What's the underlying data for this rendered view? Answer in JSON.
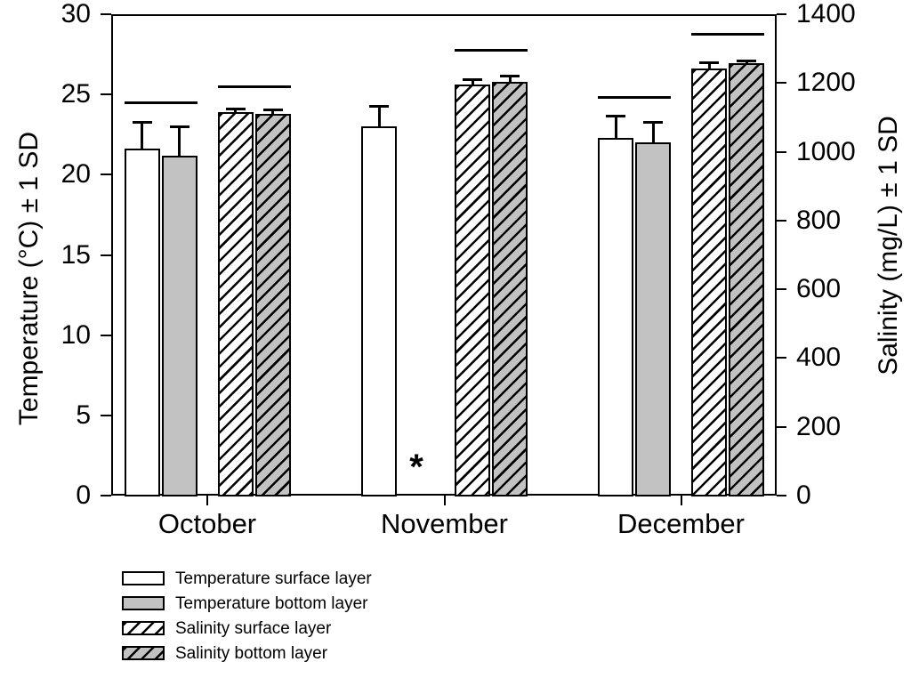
{
  "colors": {
    "bar_white": "#ffffff",
    "bar_gray": "#c2c2c2",
    "line": "#000000",
    "background": "#ffffff"
  },
  "chart_data": {
    "type": "bar",
    "title": "",
    "categories": [
      "October",
      "November",
      "December"
    ],
    "axes": {
      "left": {
        "label": "Temperature (°C) ± 1 SD",
        "min": 0,
        "max": 30,
        "ticks": [
          0,
          5,
          10,
          15,
          20,
          25,
          30
        ]
      },
      "right": {
        "label": "Salinity (mg/L) ± 1 SD",
        "min": 0,
        "max": 1400,
        "ticks": [
          0,
          200,
          400,
          600,
          800,
          1000,
          1200,
          1400
        ]
      }
    },
    "series": [
      {
        "name": "Temperature surface layer",
        "axis": "left",
        "style": "white",
        "values": [
          21.6,
          23.0,
          22.3
        ],
        "sd": [
          1.7,
          1.3,
          1.4
        ]
      },
      {
        "name": "Temperature bottom layer",
        "axis": "left",
        "style": "gray",
        "values": [
          21.2,
          null,
          22.0
        ],
        "sd": [
          1.8,
          null,
          1.3
        ]
      },
      {
        "name": "Salinity surface layer",
        "axis": "right",
        "style": "white-hatch",
        "values": [
          1115,
          1196,
          1242
        ],
        "sd": [
          11,
          15,
          18
        ]
      },
      {
        "name": "Salinity bottom layer",
        "axis": "right",
        "style": "gray-hatch",
        "values": [
          1110,
          1203,
          1258
        ],
        "sd": [
          13,
          18,
          8
        ]
      }
    ],
    "error_bars": "+1 SD, upward with caps",
    "missing_marker": "*",
    "missing_data": [
      {
        "category": "November",
        "series": "Temperature bottom layer"
      }
    ],
    "significance_lines": [
      {
        "category": "October",
        "pair": "temperature",
        "axis": "left",
        "value": 24.5
      },
      {
        "category": "October",
        "pair": "salinity",
        "axis": "right",
        "value": 1188
      },
      {
        "category": "November",
        "pair": "salinity",
        "axis": "right",
        "value": 1294
      },
      {
        "category": "December",
        "pair": "temperature",
        "axis": "left",
        "value": 24.8
      },
      {
        "category": "December",
        "pair": "salinity",
        "axis": "right",
        "value": 1343
      }
    ],
    "legend": {
      "position": "bottom-left",
      "items": [
        "Temperature surface layer",
        "Temperature bottom layer",
        "Salinity surface layer",
        "Salinity bottom layer"
      ]
    },
    "grid": "off"
  }
}
